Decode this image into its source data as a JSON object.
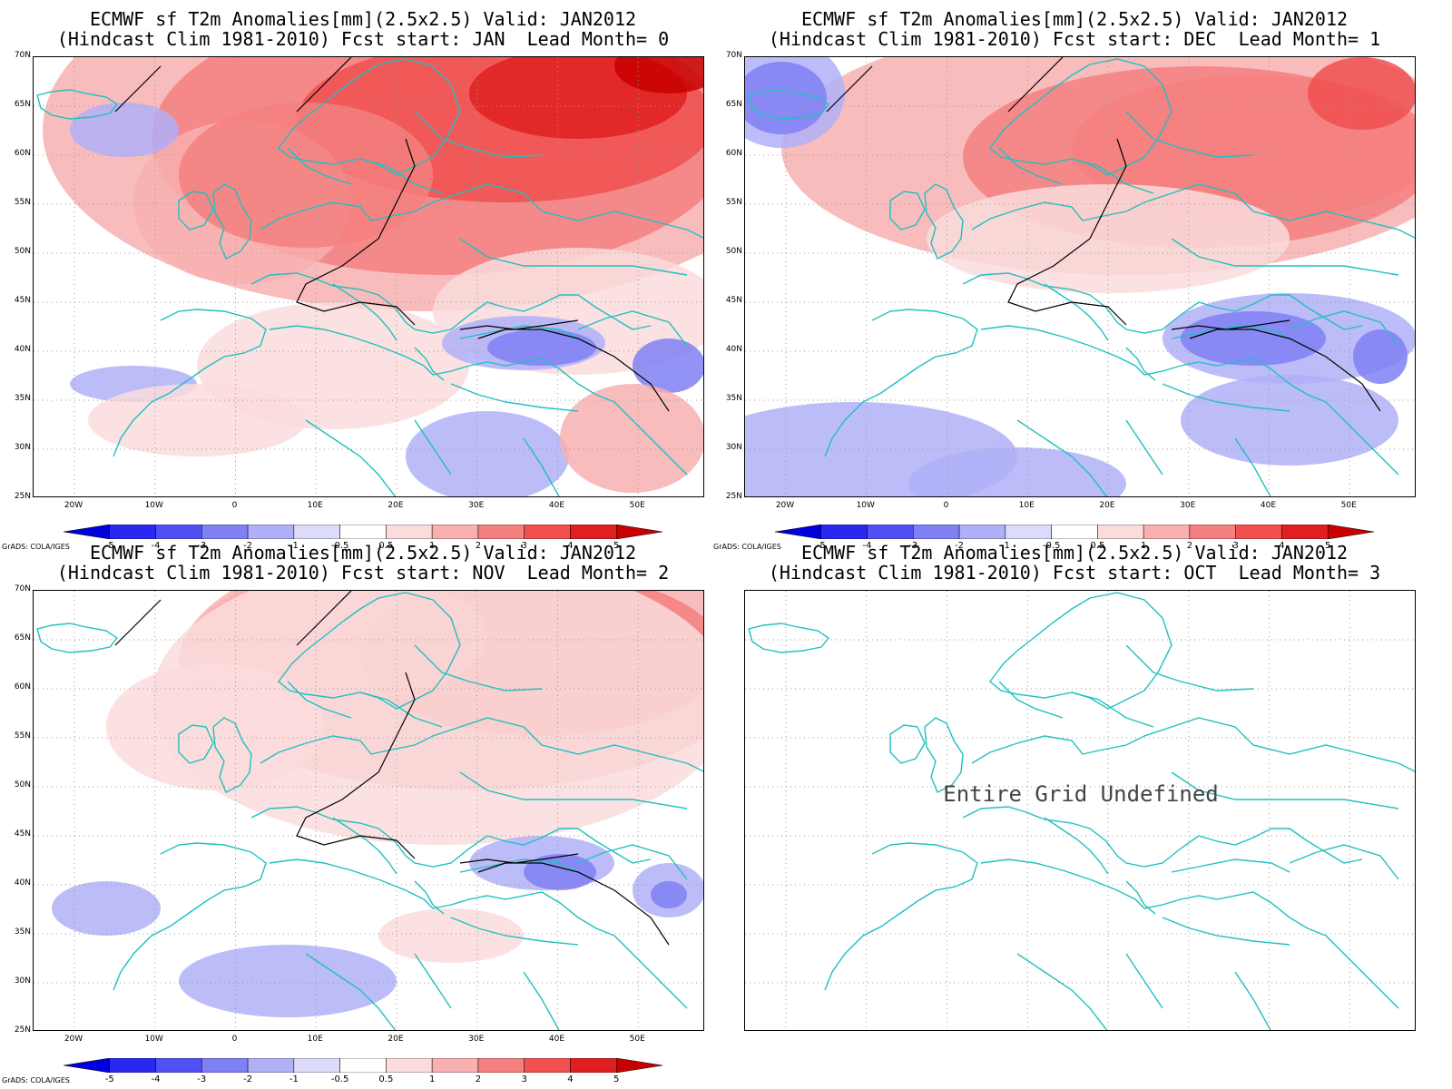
{
  "panels": [
    {
      "line1": "ECMWF sf T2m Anomalies[mm](2.5x2.5) Valid: JAN2012",
      "line2": "(Hindcast Clim 1981-2010) Fcst start: JAN  Lead Month= 0",
      "undefined": false
    },
    {
      "line1": "ECMWF sf T2m Anomalies[mm](2.5x2.5) Valid: JAN2012",
      "line2": "(Hindcast Clim 1981-2010) Fcst start: DEC  Lead Month= 1",
      "undefined": false
    },
    {
      "line1": "ECMWF sf T2m Anomalies[mm](2.5x2.5) Valid: JAN2012",
      "line2": "(Hindcast Clim 1981-2010) Fcst start: NOV  Lead Month= 2",
      "undefined": false
    },
    {
      "line1": "ECMWF sf T2m Anomalies[mm](2.5x2.5) Valid: JAN2012",
      "line2": "(Hindcast Clim 1981-2010) Fcst start: OCT  Lead Month= 3",
      "undefined": true,
      "undefined_text": "Entire Grid Undefined"
    }
  ],
  "lat_labels": [
    "70N",
    "65N",
    "60N",
    "55N",
    "50N",
    "45N",
    "40N",
    "35N",
    "30N",
    "25N"
  ],
  "lon_labels": [
    "20W",
    "10W",
    "0",
    "10E",
    "20E",
    "30E",
    "40E",
    "50E"
  ],
  "colorbar": {
    "labels": [
      "-5",
      "-4",
      "-3",
      "-2",
      "-1",
      "-0.5",
      "0.5",
      "1",
      "2",
      "3",
      "4",
      "5"
    ],
    "colors": [
      "#0000dc",
      "#2828f0",
      "#5050f5",
      "#8080f5",
      "#b0b0f8",
      "#dcdcfa",
      "#ffffff",
      "#fadcdc",
      "#f8b0b0",
      "#f58080",
      "#f05050",
      "#e02020",
      "#c80000"
    ]
  },
  "credit": "GrADS: COLA/IGES",
  "colors": {
    "coast": "#20c0c0",
    "contour": "#000000"
  }
}
